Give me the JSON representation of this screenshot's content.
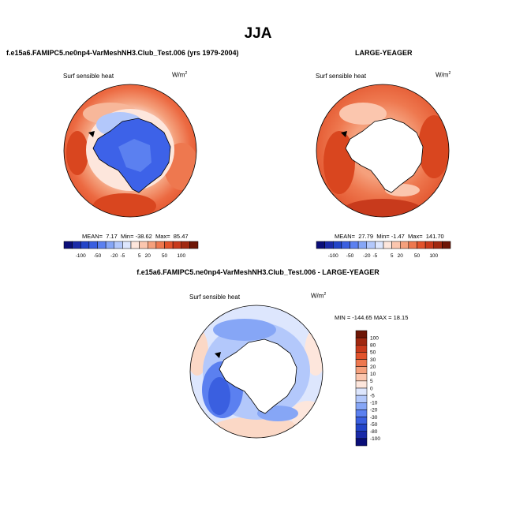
{
  "main_title": "JJA",
  "chart_data": [
    {
      "type": "polar-map",
      "title": "f.e15a6.FAMIPC5.ne0np4-VarMeshNH3.Club_Test.006 (yrs 1979-2004)",
      "variable": "Surf sensible heat",
      "units": "W/m",
      "units_sup": "2",
      "mean_label": "MEAN=",
      "mean": "7.17",
      "min_label": "Min=",
      "min": "-38.62",
      "max_label": "Max=",
      "max": "85.47",
      "colorbar_ticks": [
        "-100",
        "-50",
        "-20",
        "-5",
        "5",
        "20",
        "50",
        "100"
      ],
      "colorbar_colors": [
        "#0a0e78",
        "#1a2aa8",
        "#2244c8",
        "#3a5fe0",
        "#5b80f0",
        "#86a6f6",
        "#b3c8fb",
        "#dde6fd",
        "#fde6dc",
        "#fbc6ae",
        "#f5a07c",
        "#ee784f",
        "#e2532c",
        "#c83a1c",
        "#a02810",
        "#6e1606"
      ],
      "ice_color": "#3d62e8"
    },
    {
      "type": "polar-map",
      "title": "LARGE-YEAGER",
      "variable": "Surf sensible heat",
      "units": "W/m",
      "units_sup": "2",
      "mean_label": "MEAN=",
      "mean": "27.79",
      "min_label": "Min=",
      "min": "-1.47",
      "max_label": "Max=",
      "max": "141.70",
      "colorbar_ticks": [
        "-100",
        "-50",
        "-20",
        "-5",
        "5",
        "20",
        "50",
        "100"
      ],
      "colorbar_colors": [
        "#0a0e78",
        "#1a2aa8",
        "#2244c8",
        "#3a5fe0",
        "#5b80f0",
        "#86a6f6",
        "#b3c8fb",
        "#dde6fd",
        "#fde6dc",
        "#fbc6ae",
        "#f5a07c",
        "#ee784f",
        "#e2532c",
        "#c83a1c",
        "#a02810",
        "#6e1606"
      ],
      "ice_color": "#ffffff"
    },
    {
      "type": "polar-map",
      "title": "f.e15a6.FAMIPC5.ne0np4-VarMeshNH3.Club_Test.006 - LARGE-YEAGER",
      "variable": "Surf sensible heat",
      "units": "W/m",
      "units_sup": "2",
      "minmax_text": "MIN = -144.65  MAX =  18.15",
      "colorbar_levels": [
        "100",
        "80",
        "50",
        "30",
        "20",
        "10",
        "5",
        "0",
        "-5",
        "-10",
        "-20",
        "-30",
        "-50",
        "-80",
        "-100"
      ],
      "colorbar_colors": [
        "#6e1606",
        "#a02810",
        "#c83a1c",
        "#e2532c",
        "#ee784f",
        "#f5a07c",
        "#fbc6ae",
        "#fde6dc",
        "#dde6fd",
        "#b3c8fb",
        "#86a6f6",
        "#5b80f0",
        "#3a5fe0",
        "#2244c8",
        "#1a2aa8",
        "#0a0e78"
      ],
      "ice_color": "#ffffff"
    }
  ]
}
